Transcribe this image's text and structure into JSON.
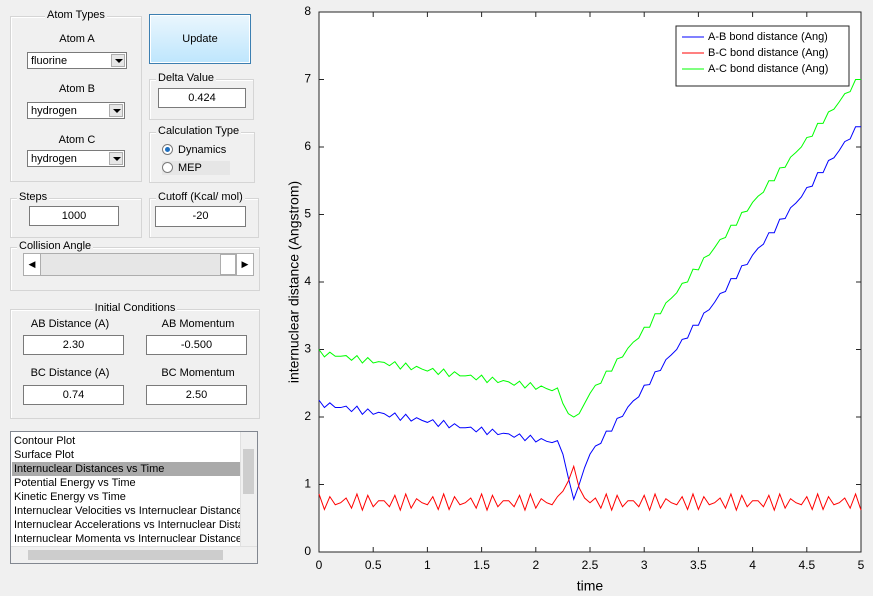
{
  "atom_types": {
    "title": "Atom Types",
    "atom_a_label": "Atom A",
    "atom_a_value": "fluorine",
    "atom_b_label": "Atom B",
    "atom_b_value": "hydrogen",
    "atom_c_label": "Atom C",
    "atom_c_value": "hydrogen"
  },
  "update_button": "Update",
  "delta_value": {
    "label": "Delta Value",
    "value": "0.424"
  },
  "calculation_type": {
    "title": "Calculation Type",
    "options": [
      "Dynamics",
      "MEP"
    ],
    "selected": 0
  },
  "steps": {
    "label": "Steps",
    "value": "1000"
  },
  "cutoff": {
    "label": "Cutoff (Kcal/ mol)",
    "value": "-20"
  },
  "collision_angle": {
    "label": "Collision Angle"
  },
  "initial_conditions": {
    "title": "Initial Conditions",
    "ab_distance_label": "AB Distance (A)",
    "ab_distance_value": "2.30",
    "ab_momentum_label": "AB Momentum",
    "ab_momentum_value": "-0.500",
    "bc_distance_label": "BC Distance (A)",
    "bc_distance_value": "0.74",
    "bc_momentum_label": "BC Momentum",
    "bc_momentum_value": "2.50"
  },
  "plot_list": {
    "items": [
      "Contour Plot",
      "Surface Plot",
      "Internuclear Distances vs Time",
      "Potential Energy vs Time",
      "Kinetic Energy vs Time",
      "Internuclear Velocities vs Internuclear Distance",
      "Internuclear Accelerations vs Internuclear Distance",
      "Internuclear Momenta vs Internuclear Distance"
    ],
    "selected": 2
  },
  "chart_data": {
    "type": "line",
    "xlabel": "time",
    "ylabel": "internuclear distance (Angstrom)",
    "x": [
      0,
      0.05,
      0.1,
      0.15,
      0.2,
      0.25,
      0.3,
      0.35,
      0.4,
      0.45,
      0.5,
      0.55,
      0.6,
      0.65,
      0.7,
      0.75,
      0.8,
      0.85,
      0.9,
      0.95,
      1,
      1.05,
      1.1,
      1.15,
      1.2,
      1.25,
      1.3,
      1.35,
      1.4,
      1.45,
      1.5,
      1.55,
      1.6,
      1.65,
      1.7,
      1.75,
      1.8,
      1.85,
      1.9,
      1.95,
      2,
      2.05,
      2.1,
      2.15,
      2.2,
      2.25,
      2.3,
      2.35,
      2.4,
      2.45,
      2.5,
      2.55,
      2.6,
      2.65,
      2.7,
      2.75,
      2.8,
      2.85,
      2.9,
      2.95,
      3,
      3.05,
      3.1,
      3.15,
      3.2,
      3.25,
      3.3,
      3.35,
      3.4,
      3.45,
      3.5,
      3.55,
      3.6,
      3.65,
      3.7,
      3.75,
      3.8,
      3.85,
      3.9,
      3.95,
      4,
      4.05,
      4.1,
      4.15,
      4.2,
      4.25,
      4.3,
      4.35,
      4.4,
      4.45,
      4.5,
      4.55,
      4.6,
      4.65,
      4.7,
      4.75,
      4.8,
      4.85,
      4.9,
      4.95,
      5
    ],
    "series": [
      {
        "name": "A-B bond distance (Ang)",
        "color": "#0000ff",
        "values": [
          2.25,
          2.14,
          2.21,
          2.14,
          2.14,
          2.16,
          2.08,
          2.16,
          2.04,
          2.12,
          2.04,
          2.07,
          2.05,
          2.0,
          2.06,
          1.95,
          2.04,
          1.94,
          1.99,
          1.95,
          1.92,
          1.96,
          1.86,
          1.95,
          1.84,
          1.9,
          1.84,
          1.84,
          1.85,
          1.78,
          1.85,
          1.74,
          1.82,
          1.74,
          1.76,
          1.75,
          1.7,
          1.75,
          1.65,
          1.73,
          1.63,
          1.68,
          1.64,
          1.62,
          1.65,
          1.45,
          1.1,
          0.78,
          1.0,
          1.25,
          1.45,
          1.57,
          1.61,
          1.79,
          1.79,
          1.98,
          2.01,
          2.15,
          2.24,
          2.3,
          2.47,
          2.48,
          2.67,
          2.69,
          2.85,
          2.92,
          3.0,
          3.15,
          3.17,
          3.36,
          3.36,
          3.54,
          3.59,
          3.7,
          3.83,
          3.86,
          4.05,
          4.05,
          4.24,
          4.26,
          4.4,
          4.5,
          4.56,
          4.73,
          4.73,
          4.93,
          4.94,
          5.1,
          5.17,
          5.26,
          5.4,
          5.42,
          5.62,
          5.62,
          5.8,
          5.84,
          5.95,
          6.08,
          6.12,
          6.3,
          6.3
        ]
      },
      {
        "name": "B-C bond distance (Ang)",
        "color": "#ff0000",
        "values": [
          0.86,
          0.63,
          0.82,
          0.7,
          0.73,
          0.8,
          0.65,
          0.86,
          0.62,
          0.84,
          0.67,
          0.76,
          0.76,
          0.67,
          0.84,
          0.62,
          0.86,
          0.65,
          0.79,
          0.73,
          0.7,
          0.82,
          0.63,
          0.86,
          0.63,
          0.82,
          0.7,
          0.73,
          0.8,
          0.65,
          0.86,
          0.62,
          0.84,
          0.67,
          0.76,
          0.76,
          0.67,
          0.84,
          0.62,
          0.86,
          0.65,
          0.79,
          0.73,
          0.7,
          0.82,
          0.9,
          1.05,
          1.27,
          0.95,
          0.8,
          0.73,
          0.8,
          0.65,
          0.86,
          0.62,
          0.84,
          0.67,
          0.76,
          0.76,
          0.67,
          0.84,
          0.62,
          0.86,
          0.65,
          0.79,
          0.73,
          0.7,
          0.82,
          0.63,
          0.86,
          0.63,
          0.82,
          0.7,
          0.73,
          0.8,
          0.65,
          0.86,
          0.62,
          0.84,
          0.67,
          0.76,
          0.76,
          0.67,
          0.84,
          0.62,
          0.86,
          0.65,
          0.79,
          0.73,
          0.7,
          0.82,
          0.63,
          0.86,
          0.63,
          0.82,
          0.7,
          0.73,
          0.8,
          0.65,
          0.86,
          0.62
        ]
      },
      {
        "name": "A-C bond distance (Ang)",
        "color": "#00ff00",
        "values": [
          3.0,
          2.89,
          2.96,
          2.9,
          2.9,
          2.91,
          2.84,
          2.91,
          2.8,
          2.88,
          2.8,
          2.82,
          2.81,
          2.76,
          2.82,
          2.71,
          2.8,
          2.7,
          2.75,
          2.71,
          2.68,
          2.72,
          2.63,
          2.71,
          2.6,
          2.67,
          2.61,
          2.61,
          2.62,
          2.55,
          2.62,
          2.51,
          2.59,
          2.51,
          2.54,
          2.52,
          2.47,
          2.53,
          2.43,
          2.51,
          2.41,
          2.46,
          2.42,
          2.39,
          2.43,
          2.2,
          2.05,
          2.0,
          2.05,
          2.2,
          2.35,
          2.47,
          2.5,
          2.68,
          2.68,
          2.86,
          2.89,
          3.02,
          3.11,
          3.17,
          3.33,
          3.33,
          3.53,
          3.53,
          3.69,
          3.76,
          3.84,
          3.98,
          4.0,
          4.19,
          4.18,
          4.36,
          4.4,
          4.51,
          4.63,
          4.66,
          4.84,
          4.84,
          5.03,
          5.05,
          5.18,
          5.27,
          5.33,
          5.5,
          5.5,
          5.69,
          5.7,
          5.85,
          5.92,
          6.0,
          6.14,
          6.16,
          6.35,
          6.35,
          6.52,
          6.56,
          6.67,
          6.79,
          6.82,
          7.0,
          7.0
        ]
      }
    ],
    "xlim": [
      0,
      5
    ],
    "ylim": [
      0,
      8
    ],
    "xticks": [
      0,
      0.5,
      1,
      1.5,
      2,
      2.5,
      3,
      3.5,
      4,
      4.5,
      5
    ],
    "yticks": [
      0,
      1,
      2,
      3,
      4,
      5,
      6,
      7,
      8
    ],
    "legend": "upper right"
  }
}
